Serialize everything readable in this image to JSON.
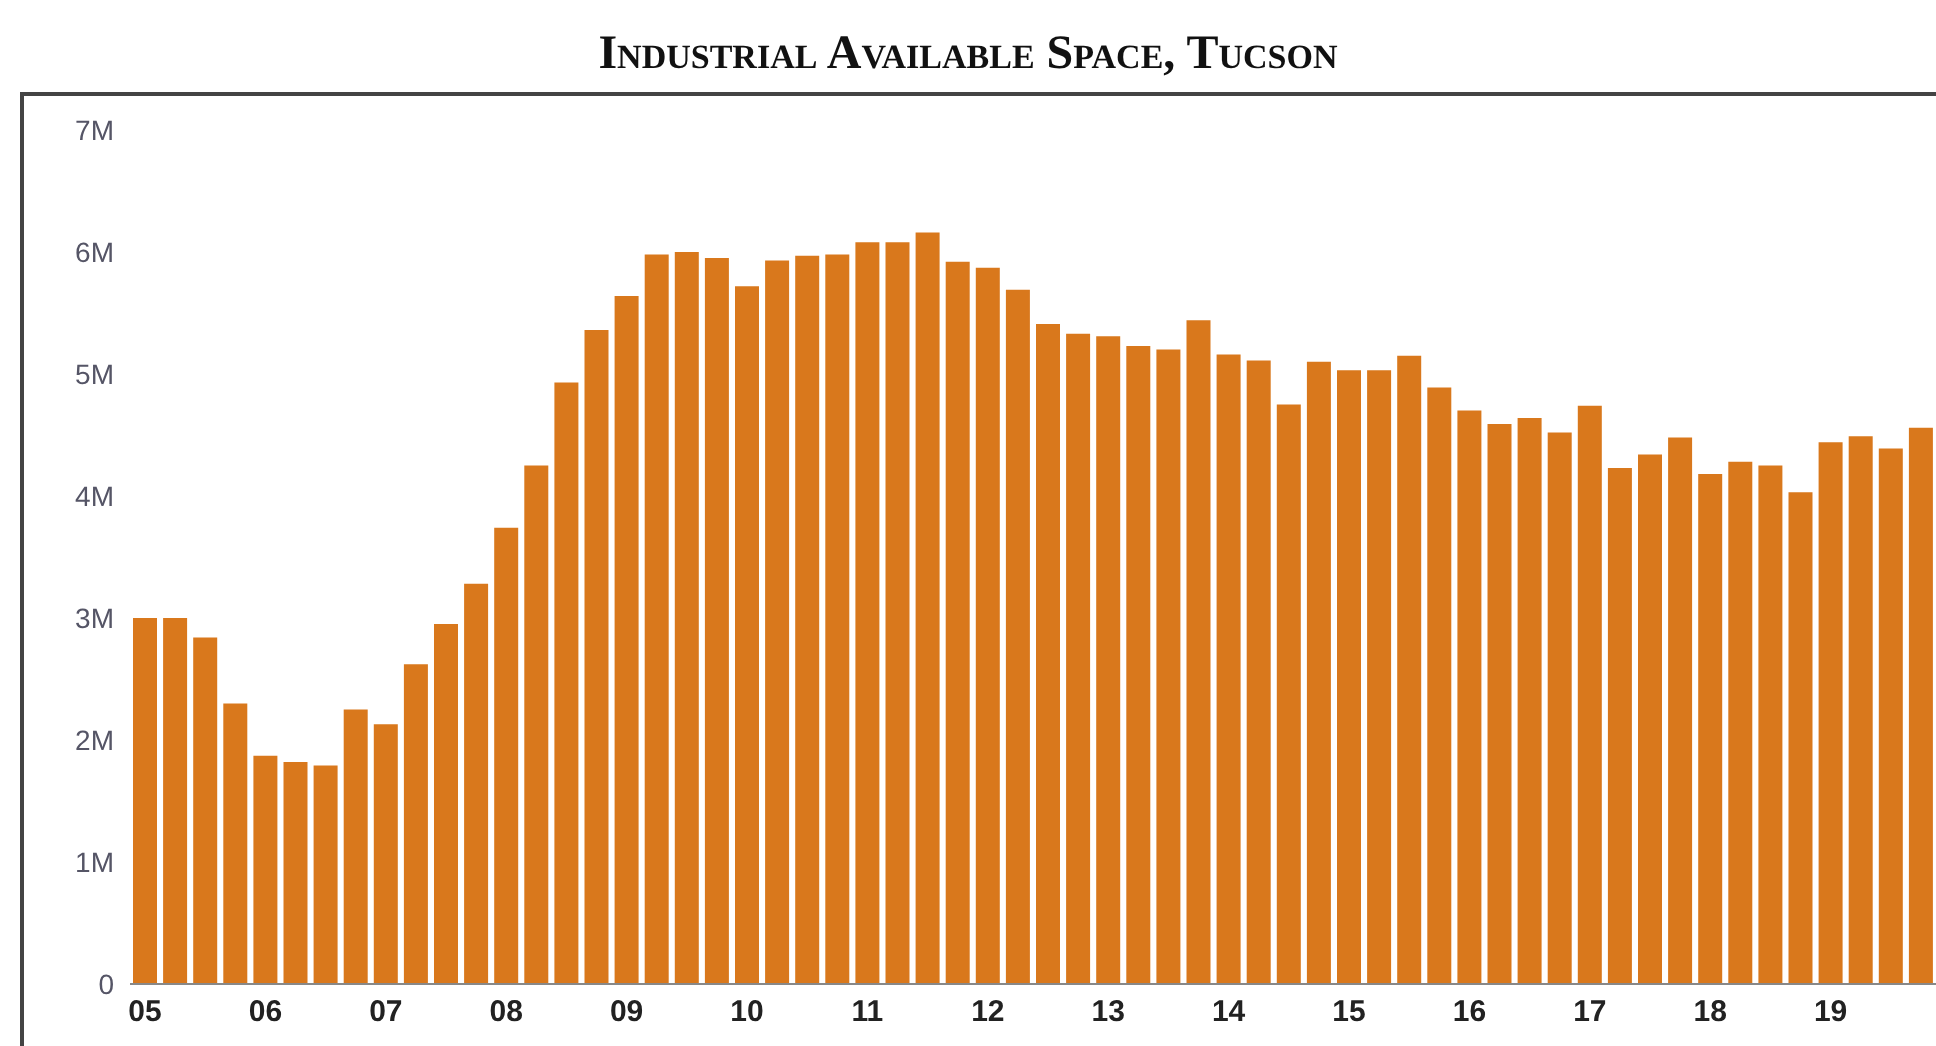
{
  "chart_data": {
    "type": "bar",
    "title": "Industrial Available Space, Tucson",
    "categories": [
      "05",
      null,
      null,
      null,
      "06",
      null,
      null,
      null,
      "07",
      null,
      null,
      null,
      "08",
      null,
      null,
      null,
      "09",
      null,
      null,
      null,
      "10",
      null,
      null,
      null,
      "11",
      null,
      null,
      null,
      "12",
      null,
      null,
      null,
      "13",
      null,
      null,
      null,
      "14",
      null,
      null,
      null,
      "15",
      null,
      null,
      null,
      "16",
      null,
      null,
      null,
      "17",
      null,
      null,
      null,
      "18",
      null,
      null,
      null,
      "19",
      null,
      null,
      null
    ],
    "values": [
      3.0,
      3.0,
      2.84,
      2.3,
      1.87,
      1.82,
      1.79,
      2.25,
      2.13,
      2.62,
      2.95,
      3.28,
      3.74,
      4.25,
      4.93,
      5.36,
      5.64,
      5.98,
      6.0,
      5.95,
      5.72,
      5.93,
      5.97,
      5.98,
      6.08,
      6.08,
      6.16,
      5.92,
      5.87,
      5.69,
      5.41,
      5.33,
      5.31,
      5.23,
      5.2,
      5.44,
      5.16,
      5.11,
      4.75,
      5.1,
      5.03,
      5.03,
      5.15,
      4.89,
      4.7,
      4.59,
      4.64,
      4.52,
      4.74,
      4.23,
      4.34,
      4.48,
      4.18,
      4.28,
      4.25,
      4.03,
      4.44,
      4.49,
      4.39,
      4.56
    ],
    "color": "#d9781c",
    "ylim": [
      0,
      7
    ],
    "yticks": [
      {
        "value": 0,
        "label": "0"
      },
      {
        "value": 1,
        "label": "1M"
      },
      {
        "value": 2,
        "label": "2M"
      },
      {
        "value": 3,
        "label": "3M"
      },
      {
        "value": 4,
        "label": "4M"
      },
      {
        "value": 5,
        "label": "5M"
      },
      {
        "value": 6,
        "label": "6M"
      },
      {
        "value": 7,
        "label": "7M"
      }
    ],
    "grid": false,
    "legend": false
  }
}
